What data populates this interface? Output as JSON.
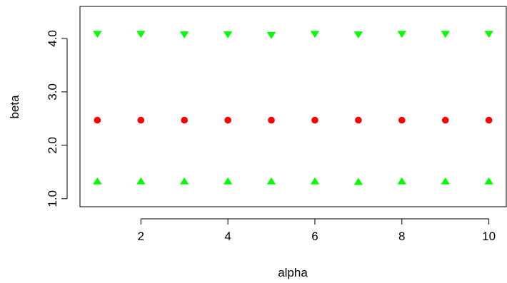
{
  "chart_data": {
    "type": "scatter",
    "xlabel": "alpha",
    "ylabel": "beta",
    "xlim": [
      0.6,
      10.4
    ],
    "ylim": [
      0.85,
      4.6
    ],
    "x_ticks": [
      2,
      4,
      6,
      8,
      10
    ],
    "x_tick_labels": [
      "2",
      "4",
      "6",
      "8",
      "10"
    ],
    "y_ticks": [
      1.0,
      2.0,
      3.0,
      4.0
    ],
    "y_tick_labels": [
      "1.0",
      "2.0",
      "3.0",
      "4.0"
    ],
    "grid": false,
    "series": [
      {
        "marker": "triangle-down",
        "color": "#00ff00",
        "x": [
          1,
          2,
          3,
          4,
          5,
          6,
          7,
          8,
          9,
          10
        ],
        "y": [
          4.09,
          4.09,
          4.08,
          4.08,
          4.07,
          4.09,
          4.08,
          4.09,
          4.09,
          4.09
        ]
      },
      {
        "marker": "circle",
        "color": "#ff0000",
        "x": [
          1,
          2,
          3,
          4,
          5,
          6,
          7,
          8,
          9,
          10
        ],
        "y": [
          2.47,
          2.47,
          2.47,
          2.47,
          2.47,
          2.47,
          2.47,
          2.47,
          2.47,
          2.47
        ]
      },
      {
        "marker": "triangle-up",
        "color": "#00ff00",
        "x": [
          1,
          2,
          3,
          4,
          5,
          6,
          7,
          8,
          9,
          10
        ],
        "y": [
          1.32,
          1.32,
          1.32,
          1.32,
          1.32,
          1.32,
          1.31,
          1.32,
          1.32,
          1.32
        ]
      }
    ]
  }
}
